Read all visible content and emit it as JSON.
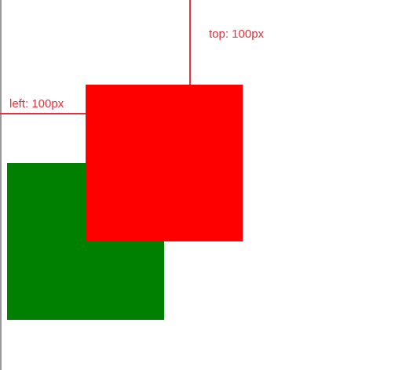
{
  "labels": {
    "top": "top: 100px",
    "left": "left: 100px"
  },
  "colors": {
    "green_box": "#008000",
    "red_box": "#ff0000",
    "guide": "#e5303d",
    "label_text": "#e5303d",
    "edge": "#9a9a9a"
  }
}
